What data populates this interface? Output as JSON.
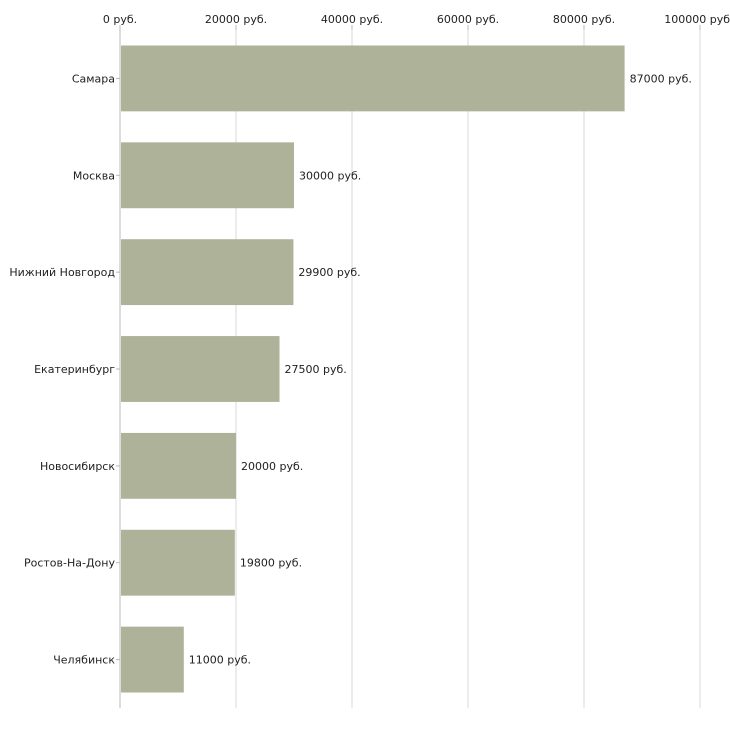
{
  "chart_data": {
    "type": "bar",
    "orientation": "horizontal",
    "title": "",
    "xlabel": "",
    "ylabel": "",
    "xlim": [
      0,
      100000
    ],
    "x_ticks": [
      0,
      20000,
      40000,
      60000,
      80000,
      100000
    ],
    "tick_suffix": " руб.",
    "grid": true,
    "categories": [
      "Самара",
      "Москва",
      "Нижний Новгород",
      "Екатеринбург",
      "Новосибирск",
      "Ростов-На-Дону",
      "Челябинск"
    ],
    "values": [
      87000,
      30000,
      29900,
      27500,
      20000,
      19800,
      11000
    ],
    "data_labels": [
      "87000 руб.",
      "30000 руб.",
      "29900 руб.",
      "27500 руб.",
      "20000 руб.",
      "19800 руб.",
      "11000 руб."
    ],
    "tick_labels": [
      "0 руб.",
      "20000 руб.",
      "40000 руб.",
      "60000 руб.",
      "80000 руб.",
      "100000 руб"
    ],
    "bar_color": "#adb299",
    "grid_color": "#d9d9d9",
    "axis_color": "#b8b8b8"
  }
}
